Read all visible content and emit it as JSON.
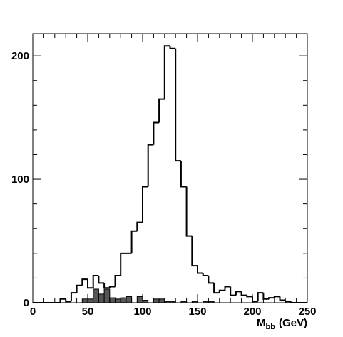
{
  "chart_data": {
    "type": "histogram",
    "xlim": [
      0,
      250
    ],
    "ylim": [
      0,
      218
    ],
    "bin_width": 5,
    "x_ticks": [
      0,
      50,
      100,
      150,
      200,
      250
    ],
    "y_ticks": [
      0,
      100,
      200
    ],
    "x_minor_step": 10,
    "y_minor_step": 20,
    "xlabel": {
      "main": "M",
      "sub": "bb",
      "unit": "(GeV)"
    },
    "ylabel": "",
    "grid": false,
    "series": [
      {
        "style": "outline",
        "color": "#000000",
        "values": [
          0,
          0,
          0,
          0,
          0,
          3,
          1,
          8,
          14,
          19,
          12,
          22,
          16,
          12,
          13,
          22,
          40,
          40,
          58,
          65,
          94,
          128,
          146,
          165,
          208,
          206,
          115,
          94,
          54,
          30,
          24,
          22,
          16,
          8,
          10,
          13,
          6,
          9,
          6,
          5,
          1,
          8,
          3,
          4,
          5,
          2,
          1,
          0,
          0,
          0
        ]
      },
      {
        "style": "filled",
        "color": "#555555",
        "values": [
          0,
          0,
          0,
          0,
          0,
          0,
          0,
          0,
          0,
          3,
          3,
          11,
          7,
          11,
          4,
          3,
          4,
          5,
          0,
          5,
          2,
          0,
          3,
          3,
          1,
          1,
          0,
          1,
          0,
          1,
          0,
          1,
          1,
          0,
          0,
          0,
          0,
          0,
          0,
          0,
          0,
          0,
          0,
          0,
          0,
          0,
          0,
          0,
          0,
          0
        ]
      }
    ]
  }
}
